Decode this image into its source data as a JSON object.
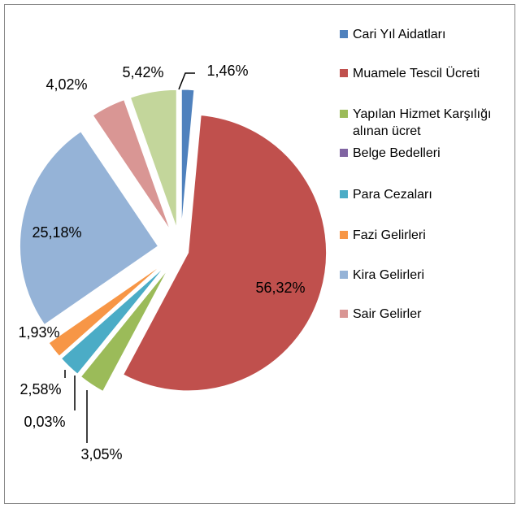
{
  "chart_data": {
    "type": "pie",
    "categories": [
      "Cari Yıl Aidatları",
      "Muamele Tescil Ücreti",
      "Yapılan Hizmet Karşılığı alınan ücret",
      "Belge Bedelleri",
      "Para Cezaları",
      "Fazi Gelirleri",
      "Kira Gelirleri",
      "Sair Gelirler",
      null
    ],
    "values": [
      1.46,
      56.32,
      3.05,
      0.03,
      2.58,
      1.93,
      25.18,
      4.02,
      5.42
    ],
    "value_labels": [
      "1,46%",
      "56,32%",
      "3,05%",
      "0,03%",
      "2,58%",
      "1,93%",
      "25,18%",
      "4,02%",
      "5,42%"
    ],
    "colors": [
      "#4f81bd",
      "#c0504d",
      "#9bbb59",
      "#8064a2",
      "#4bacc6",
      "#f79646",
      "#95b3d7",
      "#d99694",
      "#c3d69b"
    ],
    "legend": "right"
  }
}
